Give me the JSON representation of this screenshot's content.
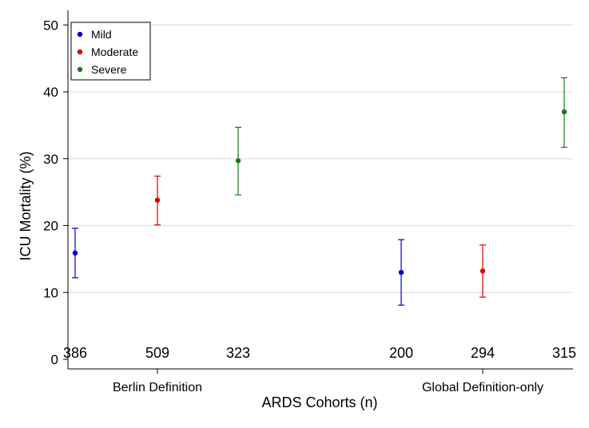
{
  "chart_data": {
    "type": "scatter",
    "xlabel": "ARDS Cohorts (n)",
    "ylabel": "ICU Mortality (%)",
    "ylim": [
      0,
      52
    ],
    "yticks": [
      0,
      10,
      20,
      30,
      40,
      50
    ],
    "grid": true,
    "legend_position": "top-left",
    "groups": [
      {
        "label": "Berlin Definition",
        "counts": [
          "386",
          "509",
          "323"
        ]
      },
      {
        "label": "Global Definition-only",
        "counts": [
          "200",
          "294",
          "315"
        ]
      }
    ],
    "series": [
      {
        "name": "Mild",
        "color": "#0000cc",
        "points": [
          {
            "group": "Berlin Definition",
            "n": "386",
            "y": 15.9,
            "lower": 12.2,
            "upper": 19.6
          },
          {
            "group": "Global Definition-only",
            "n": "200",
            "y": 13.0,
            "lower": 8.1,
            "upper": 17.9
          }
        ]
      },
      {
        "name": "Moderate",
        "color": "#dd0000",
        "points": [
          {
            "group": "Berlin Definition",
            "n": "509",
            "y": 23.8,
            "lower": 20.1,
            "upper": 27.4
          },
          {
            "group": "Global Definition-only",
            "n": "294",
            "y": 13.2,
            "lower": 9.3,
            "upper": 17.1
          }
        ]
      },
      {
        "name": "Severe",
        "color": "#1a7a1a",
        "points": [
          {
            "group": "Berlin Definition",
            "n": "323",
            "y": 29.7,
            "lower": 24.6,
            "upper": 34.7
          },
          {
            "group": "Global Definition-only",
            "n": "315",
            "y": 37.0,
            "lower": 31.7,
            "upper": 42.1
          }
        ]
      }
    ]
  }
}
